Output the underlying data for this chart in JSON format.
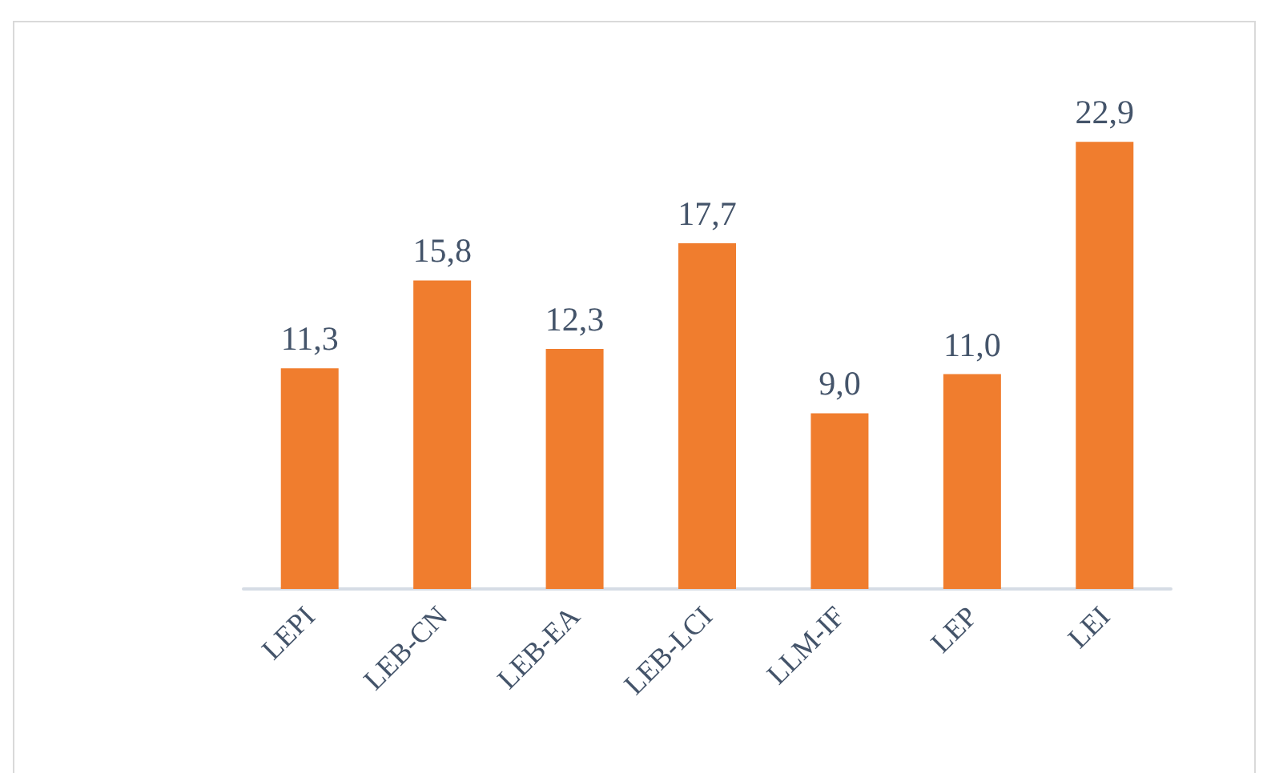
{
  "chart_data": {
    "type": "bar",
    "categories": [
      "LEPI",
      "LEB-CN",
      "LEB-EA",
      "LEB-LCI",
      "LLM-IF",
      "LEP",
      "LEI"
    ],
    "values": [
      11.3,
      15.8,
      12.3,
      17.7,
      9.0,
      11.0,
      22.9
    ],
    "value_labels": [
      "11,3",
      "15,8",
      "12,3",
      "17,7",
      "9,0",
      "11,0",
      "22,9"
    ],
    "color": "#f07d2e",
    "tick_labels": "x"
  }
}
